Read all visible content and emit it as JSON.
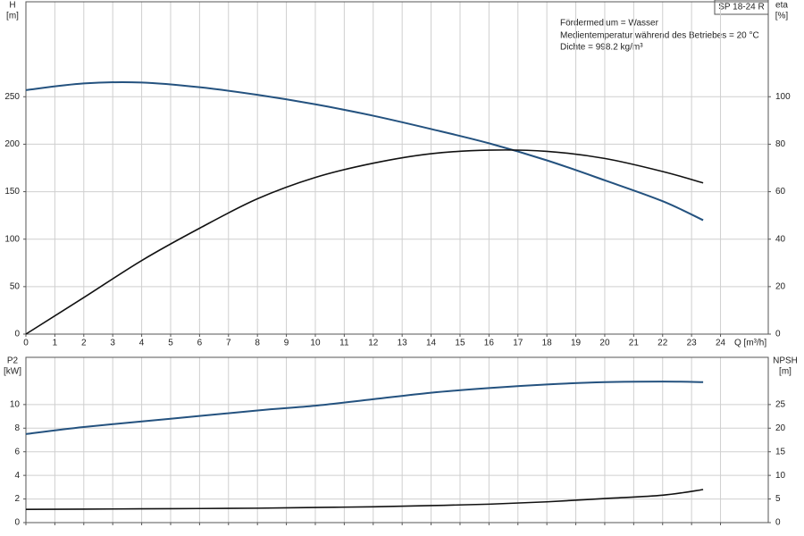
{
  "chart_data": [
    {
      "type": "line",
      "model": "SP 18-24 R",
      "annotations": [
        "Fördermedium = Wasser",
        "Medientemperatur während des Betriebes = 20 °C",
        "Dichte = 998.2 kg/m³"
      ],
      "ylabel": "H",
      "yunit": "[m]",
      "y2label": "eta",
      "y2unit": "[%]",
      "xlabel": "Q [m³/h]",
      "xlim": [
        0,
        25.65
      ],
      "xticks": [
        0,
        1,
        2,
        3,
        4,
        5,
        6,
        7,
        8,
        9,
        10,
        11,
        12,
        13,
        14,
        15,
        16,
        17,
        18,
        19,
        20,
        21,
        22,
        23,
        24
      ],
      "ylim": [
        0,
        350
      ],
      "yticks": [
        0,
        50,
        100,
        150,
        200,
        250
      ],
      "y2lim": [
        0,
        140
      ],
      "y2ticks": [
        0,
        20,
        40,
        60,
        80,
        100
      ],
      "grid": true,
      "x": [
        0,
        2,
        4,
        6,
        8,
        10,
        12,
        14,
        16,
        18,
        20,
        22,
        23.4
      ],
      "series": [
        {
          "color": "#24527f",
          "values": [
            257,
            264,
            265,
            260,
            252,
            242,
            230,
            216,
            201,
            183,
            162,
            140,
            120
          ]
        },
        {
          "color": "#111111",
          "axis": "y2",
          "values": [
            0,
            15.4,
            31,
            44.6,
            57,
            66,
            72,
            76,
            77.5,
            77,
            74,
            68.5,
            63.7
          ]
        }
      ]
    },
    {
      "type": "line",
      "ylabel": "P2",
      "yunit": "[kW]",
      "y2label": "NPSH",
      "y2unit": "[m]",
      "xlim": [
        0,
        25.65
      ],
      "ylim": [
        0,
        14
      ],
      "yticks": [
        0,
        2,
        4,
        6,
        8,
        10
      ],
      "y2lim": [
        0,
        35
      ],
      "y2ticks": [
        0,
        5,
        10,
        15,
        20,
        25
      ],
      "grid": true,
      "x": [
        0,
        2,
        5,
        8,
        10,
        12,
        14,
        16,
        18,
        20,
        22,
        23.4
      ],
      "series": [
        {
          "color": "#24527f",
          "values": [
            7.5,
            8.1,
            8.8,
            9.5,
            9.9,
            10.45,
            11.0,
            11.4,
            11.7,
            11.9,
            11.95,
            11.9
          ]
        },
        {
          "color": "#111111",
          "axis": "y2",
          "values": [
            2.8,
            2.85,
            2.95,
            3.05,
            3.2,
            3.35,
            3.6,
            3.9,
            4.4,
            5.1,
            5.8,
            7.0
          ]
        }
      ]
    }
  ]
}
